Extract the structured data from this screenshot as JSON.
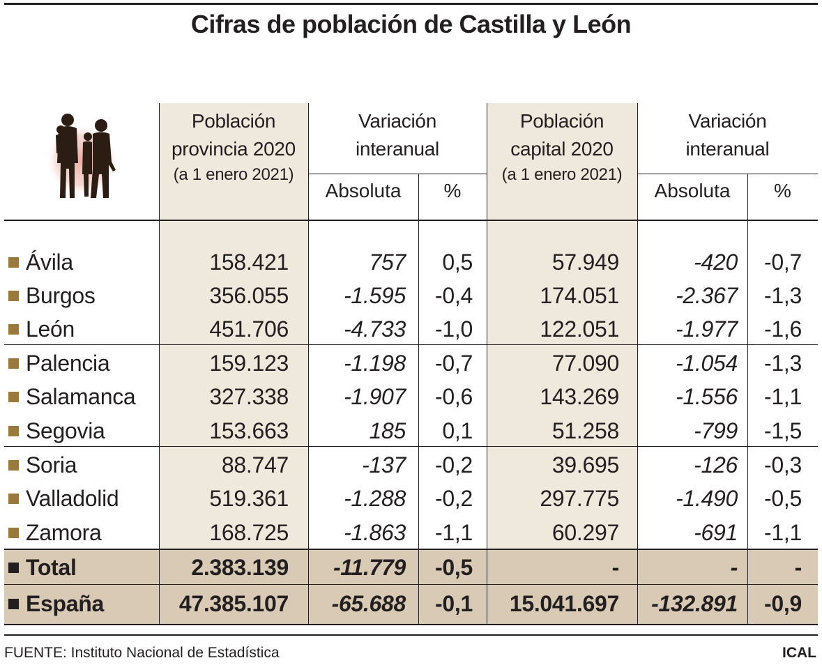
{
  "title": "Cifras de población de Castilla y León",
  "headers": {
    "pop_prov_line1": "Población",
    "pop_prov_line2": "provincia 2020",
    "pop_prov_line3": "(a 1 enero 2021)",
    "var_prov_line1": "Variación",
    "var_prov_line2": "interanual",
    "pop_cap_line1": "Población",
    "pop_cap_line2": "capital 2020",
    "pop_cap_line3": "(a 1 enero 2021)",
    "var_cap_line1": "Variación",
    "var_cap_line2": "interanual",
    "abs_prov": "Absoluta",
    "pct_prov": "%",
    "abs_cap": "Absoluta",
    "pct_cap": "%"
  },
  "footer": {
    "source": "FUENTE: Instituto Nacional de Estadística",
    "credit": "ICAL"
  },
  "colors": {
    "column_shade": "#efe8dc",
    "total_shade": "#d8cab4",
    "bullet": "#9a7a3c",
    "text": "#231f20",
    "icon_glow": "#e7a79d"
  },
  "chart_data": {
    "type": "table",
    "columns": [
      "Población provincia 2020 (a 1 enero 2021)",
      "Variación interanual Absoluta",
      "Variación interanual %",
      "Población capital 2020 (a 1 enero 2021)",
      "Variación interanual Absoluta",
      "Variación interanual %"
    ],
    "rows": [
      {
        "name": "Ávila",
        "pop_prov": "158.421",
        "abs_prov": "757",
        "pct_prov": "0,5",
        "pop_cap": "57.949",
        "abs_cap": "-420",
        "pct_cap": "-0,7"
      },
      {
        "name": "Burgos",
        "pop_prov": "356.055",
        "abs_prov": "-1.595",
        "pct_prov": "-0,4",
        "pop_cap": "174.051",
        "abs_cap": "-2.367",
        "pct_cap": "-1,3"
      },
      {
        "name": "León",
        "pop_prov": "451.706",
        "abs_prov": "-4.733",
        "pct_prov": "-1,0",
        "pop_cap": "122.051",
        "abs_cap": "-1.977",
        "pct_cap": "-1,6"
      },
      {
        "name": "Palencia",
        "pop_prov": "159.123",
        "abs_prov": "-1.198",
        "pct_prov": "-0,7",
        "pop_cap": "77.090",
        "abs_cap": "-1.054",
        "pct_cap": "-1,3"
      },
      {
        "name": "Salamanca",
        "pop_prov": "327.338",
        "abs_prov": "-1.907",
        "pct_prov": "-0,6",
        "pop_cap": "143.269",
        "abs_cap": "-1.556",
        "pct_cap": "-1,1"
      },
      {
        "name": "Segovia",
        "pop_prov": "153.663",
        "abs_prov": "185",
        "pct_prov": "0,1",
        "pop_cap": "51.258",
        "abs_cap": "-799",
        "pct_cap": "-1,5"
      },
      {
        "name": "Soria",
        "pop_prov": "88.747",
        "abs_prov": "-137",
        "pct_prov": "-0,2",
        "pop_cap": "39.695",
        "abs_cap": "-126",
        "pct_cap": "-0,3"
      },
      {
        "name": "Valladolid",
        "pop_prov": "519.361",
        "abs_prov": "-1.288",
        "pct_prov": "-0,2",
        "pop_cap": "297.775",
        "abs_cap": "-1.490",
        "pct_cap": "-0,5"
      },
      {
        "name": "Zamora",
        "pop_prov": "168.725",
        "abs_prov": "-1.863",
        "pct_prov": "-1,1",
        "pop_cap": "60.297",
        "abs_cap": "-691",
        "pct_cap": "-1,1"
      },
      {
        "name": "Total",
        "pop_prov": "2.383.139",
        "abs_prov": "-11.779",
        "pct_prov": "-0,5",
        "pop_cap": "-",
        "abs_cap": "-",
        "pct_cap": "-"
      },
      {
        "name": "España",
        "pop_prov": "47.385.107",
        "abs_prov": "-65.688",
        "pct_prov": "-0,1",
        "pop_cap": "15.041.697",
        "abs_cap": "-132.891",
        "pct_cap": "-0,9"
      }
    ]
  }
}
